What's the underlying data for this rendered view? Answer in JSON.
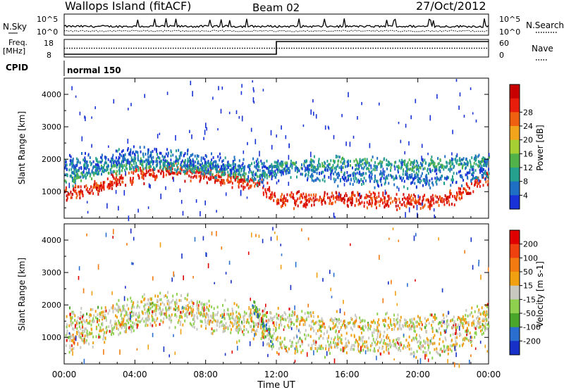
{
  "header": {
    "station": "Wallops Island (fitACF)",
    "beam": "Beam 02",
    "date": "27/Oct/2012"
  },
  "top_panel": {
    "left_label": "N.Sky",
    "left_ticks": [
      "10^5",
      "10^0"
    ],
    "right_ticks": [
      "10^5",
      "10^0"
    ],
    "right_label": "N.Search"
  },
  "freq_panel": {
    "left_label_1": "Freq.",
    "left_label_2": "[MHz]",
    "left_ticks": [
      "18",
      "8"
    ],
    "right_ticks": [
      "60",
      "0"
    ],
    "right_label": "Nave",
    "freq_steps": [
      [
        0,
        9.6
      ],
      [
        12,
        9.6
      ],
      [
        12,
        16.8
      ],
      [
        24,
        16.8
      ]
    ],
    "nave_steps": [
      [
        0,
        30
      ],
      [
        24,
        30
      ]
    ]
  },
  "cpid": {
    "label": "CPID",
    "mode": "normal 150"
  },
  "chart_data": [
    {
      "type": "heatmap",
      "name": "Power",
      "ylabel": "Slant Range [km]",
      "y_ticks": [
        "1000",
        "2000",
        "3000",
        "4000"
      ],
      "ylim": [
        180,
        4500
      ],
      "xlim": [
        0,
        24
      ],
      "colorbar_label": "Power [dB]",
      "colorbar_ticks": [
        "4",
        "8",
        "12",
        "16",
        "20",
        "24",
        "28"
      ],
      "colorbar_colors": [
        "#1832d8",
        "#1f6fc4",
        "#25a08f",
        "#52b24a",
        "#a6cf33",
        "#f2a41c",
        "#ef6010",
        "#e81d0c",
        "#c80000"
      ],
      "echo_bands": [
        {
          "t": [
            0,
            2,
            4,
            6,
            8,
            10,
            11,
            12,
            16,
            20,
            21.5,
            23,
            24
          ],
          "r": [
            900,
            1200,
            1550,
            1700,
            1550,
            1350,
            1250,
            800,
            820,
            720,
            780,
            1150,
            1500
          ],
          "w": 220,
          "level": 7
        },
        {
          "t": [
            0,
            2,
            4,
            6,
            8,
            10,
            11,
            12,
            16,
            20,
            22,
            24
          ],
          "r": [
            1400,
            1700,
            1900,
            1850,
            1750,
            1650,
            1450,
            1850,
            1900,
            1850,
            1900,
            2000
          ],
          "w": 200,
          "level": 2
        },
        {
          "t": [
            0,
            2,
            4,
            6,
            8,
            10,
            12,
            16,
            20,
            22,
            24
          ],
          "r": [
            1800,
            1950,
            2150,
            2100,
            1950,
            1800,
            1700,
            1500,
            1400,
            1450,
            1700
          ],
          "w": 260,
          "level": 1
        }
      ]
    },
    {
      "type": "heatmap",
      "name": "Velocity",
      "ylabel": "Slant Range [km]",
      "y_ticks": [
        "1000",
        "2000",
        "3000",
        "4000"
      ],
      "ylim": [
        180,
        4500
      ],
      "xlim": [
        0,
        24
      ],
      "xlabel": "Time UT",
      "x_ticks": [
        "00:00",
        "04:00",
        "08:00",
        "12:00",
        "16:00",
        "20:00",
        "00:00"
      ],
      "colorbar_label": "Velocity [m s-1]",
      "colorbar_ticks": [
        "200",
        "100",
        "50",
        "15",
        "-15",
        "-50",
        "-100",
        "-200"
      ],
      "colorbar_colors": [
        "#1630c8",
        "#2a6fd0",
        "#4aa52b",
        "#8fd14f",
        "#c8c8c0",
        "#f0a010",
        "#f27a10",
        "#ef4010",
        "#e00000"
      ],
      "echo_bands": [
        {
          "t": [
            0,
            2,
            4,
            6,
            8,
            10,
            11,
            12,
            16,
            20,
            21.5,
            23,
            24
          ],
          "r": [
            900,
            1200,
            1550,
            1700,
            1550,
            1350,
            1250,
            850,
            850,
            780,
            800,
            1150,
            1500
          ],
          "w": 320,
          "level": 4
        },
        {
          "t": [
            0,
            2,
            4,
            6,
            8,
            10,
            12,
            16,
            20,
            22,
            24
          ],
          "r": [
            1500,
            1750,
            2000,
            2100,
            1900,
            1700,
            1600,
            1450,
            1400,
            1450,
            1800
          ],
          "w": 320,
          "level": 4
        },
        {
          "t": [
            10.6,
            11.0,
            11.4,
            11.8
          ],
          "r": [
            2100,
            1700,
            1300,
            900
          ],
          "w": 200,
          "level": 2
        }
      ]
    }
  ]
}
